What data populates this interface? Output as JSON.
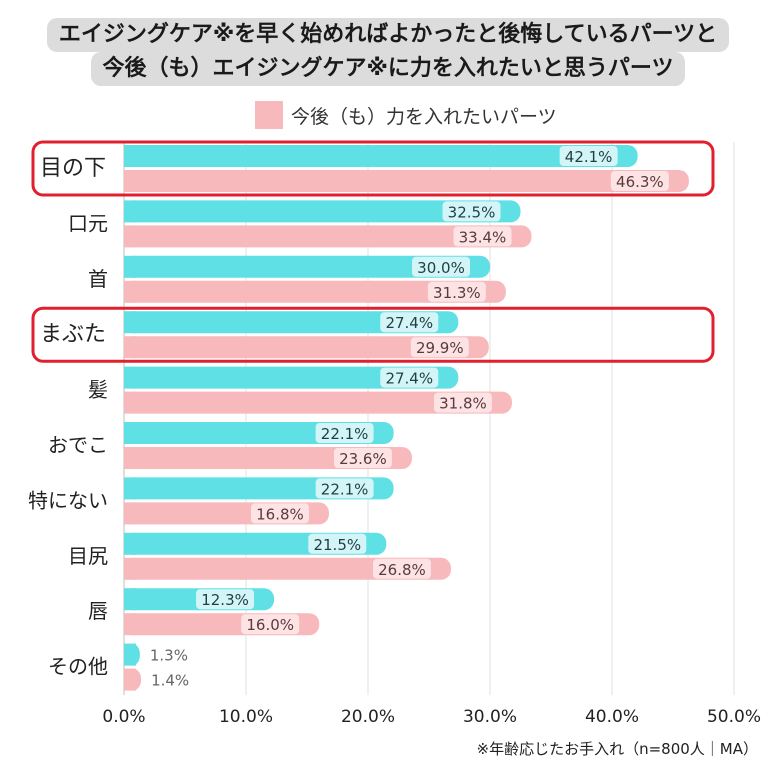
{
  "title_lines": [
    "エイジングケア※を早く始めればよかったと後悔しているパーツと",
    "今後（も）エイジングケア※に力を入れたいと思うパーツ"
  ],
  "legend": {
    "label": "今後（も）力を入れたいパーツ",
    "color": "#f7b9bb"
  },
  "footnote": "※年齢応じたお手入れ（n=800人｜MA）",
  "highlighted_categories": [
    "目の下",
    "まぶた"
  ],
  "colors": {
    "series_a": "#5ee0e5",
    "series_a_label_bg": "#d4f5f7",
    "series_b": "#f7b9bb",
    "series_b_label_bg": "#fde3e4",
    "highlight": "#e0202e",
    "grid": "#e1e1e1"
  },
  "chart_data": {
    "type": "bar",
    "orientation": "horizontal",
    "categories": [
      "目の下",
      "口元",
      "首",
      "まぶた",
      "髪",
      "おでこ",
      "特にない",
      "目尻",
      "唇",
      "その他"
    ],
    "series": [
      {
        "values": [
          42.1,
          32.5,
          30.0,
          27.4,
          27.4,
          22.1,
          22.1,
          21.5,
          12.3,
          1.3
        ],
        "labels": [
          "42.1%",
          "32.5%",
          "30.0%",
          "27.4%",
          "27.4%",
          "22.1%",
          "22.1%",
          "21.5%",
          "12.3%",
          "1.3%"
        ]
      },
      {
        "name": "今後（も）力を入れたいパーツ",
        "values": [
          46.3,
          33.4,
          31.3,
          29.9,
          31.8,
          23.6,
          16.8,
          26.8,
          16.0,
          1.4
        ],
        "labels": [
          "46.3%",
          "33.4%",
          "31.3%",
          "29.9%",
          "31.8%",
          "23.6%",
          "16.8%",
          "26.8%",
          "16.0%",
          "1.4%"
        ]
      }
    ],
    "xlim": [
      0,
      50
    ],
    "xticks": [
      0,
      10,
      20,
      30,
      40,
      50
    ],
    "xtick_labels": [
      "0.0%",
      "10.0%",
      "20.0%",
      "30.0%",
      "40.0%",
      "50.0%"
    ],
    "grid": true,
    "legend_position": "top"
  }
}
